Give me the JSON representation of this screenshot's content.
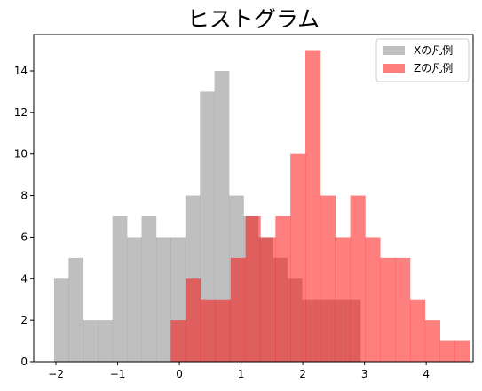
{
  "chart_data": {
    "type": "histogram",
    "title": "ヒストグラム",
    "xlabel": "",
    "ylabel": "",
    "xlim": [
      -2.36,
      4.76
    ],
    "ylim": [
      0,
      15.75
    ],
    "xticks": [
      -2,
      -1,
      0,
      1,
      2,
      3,
      4
    ],
    "yticks": [
      0,
      2,
      4,
      6,
      8,
      10,
      12,
      14
    ],
    "legend_position": "top-right",
    "series": [
      {
        "name": "Xの凡例",
        "color": "#808080",
        "alpha": 0.5,
        "bin_start": -2.03,
        "bin_width": 0.2363,
        "counts": [
          4,
          5,
          2,
          2,
          7,
          6,
          7,
          6,
          6,
          8,
          13,
          14,
          8,
          7,
          6,
          5,
          4,
          3,
          3,
          3,
          3
        ]
      },
      {
        "name": "Zの凡例",
        "color": "#ff0000",
        "alpha": 0.5,
        "bin_start": -0.14,
        "bin_width": 0.2424,
        "counts": [
          2,
          4,
          3,
          3,
          5,
          7,
          6,
          7,
          10,
          15,
          8,
          6,
          8,
          6,
          5,
          5,
          3,
          2,
          1,
          1,
          0,
          0,
          1
        ]
      }
    ]
  }
}
